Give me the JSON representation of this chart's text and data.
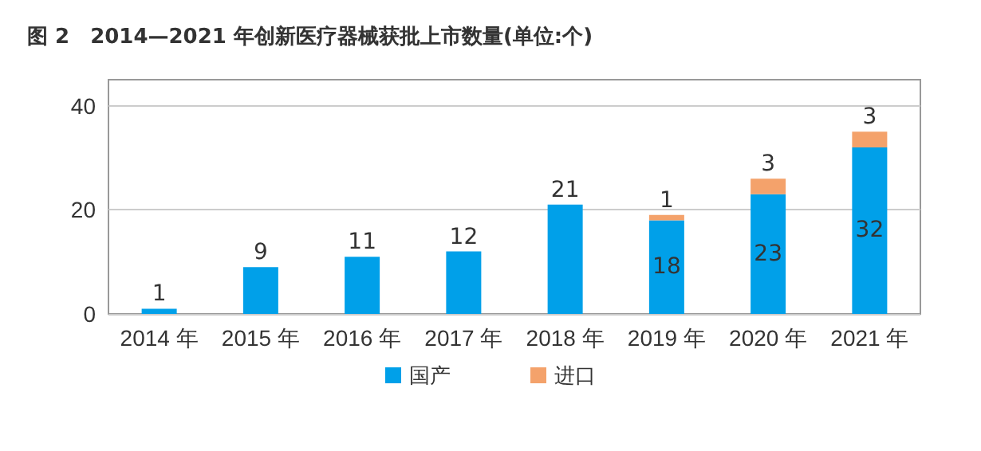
{
  "chart_data": {
    "type": "bar",
    "title": "图 2　2014—2021 年创新医疗器械获批上市数量(单位:个)",
    "categories": [
      "2014 年",
      "2015 年",
      "2016 年",
      "2017 年",
      "2018 年",
      "2019 年",
      "2020 年",
      "2021 年"
    ],
    "series": [
      {
        "name": "国产",
        "color": "#00a0e9",
        "values": [
          1,
          9,
          11,
          12,
          21,
          18,
          23,
          32
        ]
      },
      {
        "name": "进口",
        "color": "#f4a26b",
        "values": [
          null,
          null,
          null,
          null,
          null,
          1,
          3,
          3
        ]
      }
    ],
    "stacked": true,
    "data_labels": true,
    "ylim": [
      0,
      45
    ],
    "yticks": [
      0,
      20,
      40
    ],
    "grid": "y",
    "legend": "bottom"
  }
}
